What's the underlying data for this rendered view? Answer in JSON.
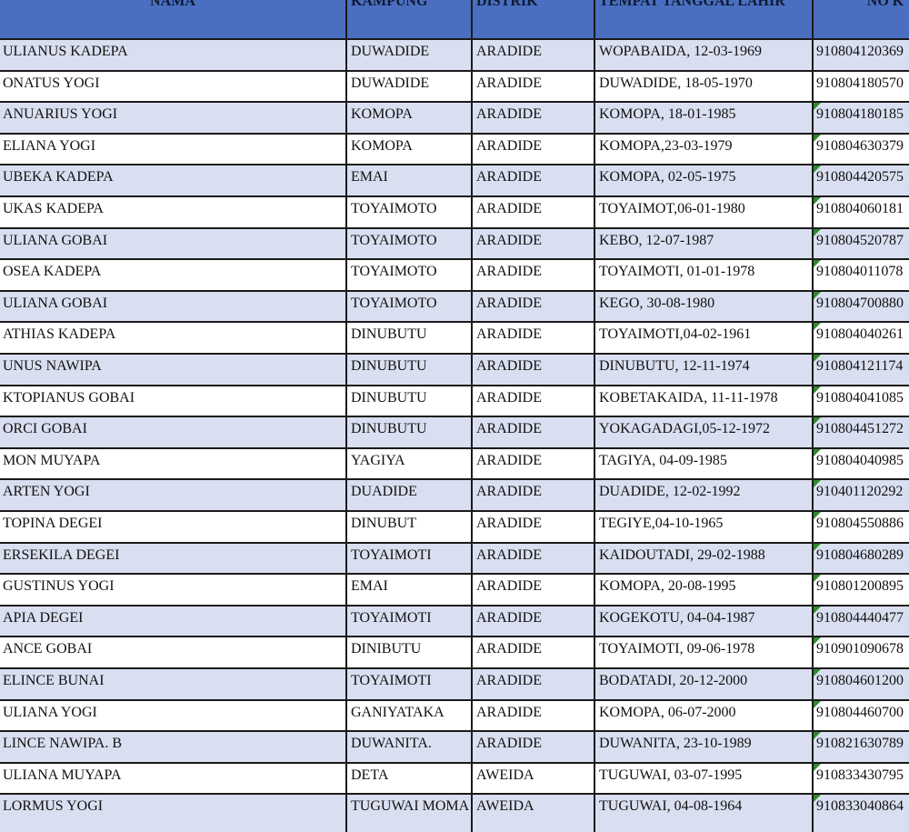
{
  "colors": {
    "header_bg": "#4a6fc0",
    "row_alt_bg": "#d9dff0",
    "marker": "#2e8b2e"
  },
  "headers": [
    "NAMA",
    "KAMPUNG",
    "DISTRIK",
    "TEMPAT TANGGAL LAHIR",
    "NO K"
  ],
  "rows": [
    {
      "nama": "ULIANUS KADEPA",
      "kampung": "DUWADIDE",
      "distrik": "ARADIDE",
      "ttl": "WOPABAIDA, 12-03-1969",
      "no": "910804120369",
      "marker": false
    },
    {
      "nama": "ONATUS YOGI",
      "kampung": "DUWADIDE",
      "distrik": "ARADIDE",
      "ttl": "DUWADIDE, 18-05-1970",
      "no": "910804180570",
      "marker": false
    },
    {
      "nama": "ANUARIUS YOGI",
      "kampung": "KOMOPA",
      "distrik": "ARADIDE",
      "ttl": "KOMOPA, 18-01-1985",
      "no": "910804180185",
      "marker": true
    },
    {
      "nama": "ELIANA YOGI",
      "kampung": "KOMOPA",
      "distrik": "ARADIDE",
      "ttl": "KOMOPA,23-03-1979",
      "no": "910804630379",
      "marker": true
    },
    {
      "nama": "UBEKA KADEPA",
      "kampung": "EMAI",
      "distrik": "ARADIDE",
      "ttl": "KOMOPA, 02-05-1975",
      "no": "910804420575",
      "marker": true
    },
    {
      "nama": "UKAS KADEPA",
      "kampung": "TOYAIMOTO",
      "distrik": "ARADIDE",
      "ttl": "TOYAIMOT,06-01-1980",
      "no": "910804060181",
      "marker": true
    },
    {
      "nama": "ULIANA GOBAI",
      "kampung": "TOYAIMOTO",
      "distrik": "ARADIDE",
      "ttl": "KEBO, 12-07-1987",
      "no": "910804520787",
      "marker": true
    },
    {
      "nama": "OSEA KADEPA",
      "kampung": "TOYAIMOTO",
      "distrik": "ARADIDE",
      "ttl": "TOYAIMOTI, 01-01-1978",
      "no": "910804011078",
      "marker": true
    },
    {
      "nama": "ULIANA GOBAI",
      "kampung": "TOYAIMOTO",
      "distrik": "ARADIDE",
      "ttl": "KEGO, 30-08-1980",
      "no": "910804700880",
      "marker": true
    },
    {
      "nama": "ATHIAS KADEPA",
      "kampung": "DINUBUTU",
      "distrik": "ARADIDE",
      "ttl": "TOYAIMOTI,04-02-1961",
      "no": "910804040261",
      "marker": true
    },
    {
      "nama": "UNUS NAWIPA",
      "kampung": "DINUBUTU",
      "distrik": "ARADIDE",
      "ttl": "DINUBUTU, 12-11-1974",
      "no": "910804121174",
      "marker": true
    },
    {
      "nama": "KTOPIANUS GOBAI",
      "kampung": "DINUBUTU",
      "distrik": "ARADIDE",
      "ttl": "KOBETAKAIDA, 11-11-1978",
      "no": "910804041085",
      "marker": true
    },
    {
      "nama": "ORCI GOBAI",
      "kampung": "DINUBUTU",
      "distrik": "ARADIDE",
      "ttl": "YOKAGADAGI,05-12-1972",
      "no": "910804451272",
      "marker": true
    },
    {
      "nama": "MON MUYAPA",
      "kampung": "YAGIYA",
      "distrik": "ARADIDE",
      "ttl": "TAGIYA, 04-09-1985",
      "no": "910804040985",
      "marker": true
    },
    {
      "nama": "ARTEN YOGI",
      "kampung": "DUADIDE",
      "distrik": "ARADIDE",
      "ttl": "DUADIDE, 12-02-1992",
      "no": "910401120292",
      "marker": true
    },
    {
      "nama": "TOPINA DEGEI",
      "kampung": "DINUBUT",
      "distrik": "ARADIDE",
      "ttl": "TEGIYE,04-10-1965",
      "no": "910804550886",
      "marker": true
    },
    {
      "nama": "ERSEKILA DEGEI",
      "kampung": "TOYAIMOTI",
      "distrik": "ARADIDE",
      "ttl": "KAIDOUTADI, 29-02-1988",
      "no": "910804680289",
      "marker": true
    },
    {
      "nama": "GUSTINUS YOGI",
      "kampung": "EMAI",
      "distrik": "ARADIDE",
      "ttl": "KOMOPA, 20-08-1995",
      "no": "910801200895",
      "marker": true
    },
    {
      "nama": "APIA DEGEI",
      "kampung": "TOYAIMOTI",
      "distrik": "ARADIDE",
      "ttl": "KOGEKOTU, 04-04-1987",
      "no": "910804440477",
      "marker": true
    },
    {
      "nama": "ANCE GOBAI",
      "kampung": "DINIBUTU",
      "distrik": "ARADIDE",
      "ttl": "TOYAIMOTI, 09-06-1978",
      "no": "910901090678",
      "marker": true
    },
    {
      "nama": "ELINCE BUNAI",
      "kampung": "TOYAIMOTI",
      "distrik": "ARADIDE",
      "ttl": "BODATADI, 20-12-2000",
      "no": "910804601200",
      "marker": true
    },
    {
      "nama": "ULIANA YOGI",
      "kampung": "GANIYATAKA",
      "distrik": "ARADIDE",
      "ttl": "KOMOPA, 06-07-2000",
      "no": "910804460700",
      "marker": true
    },
    {
      "nama": "LINCE NAWIPA. B",
      "kampung": "DUWANITA.",
      "distrik": "ARADIDE",
      "ttl": "DUWANITA, 23-10-1989",
      "no": "910821630789",
      "marker": true
    },
    {
      "nama": "ULIANA MUYAPA",
      "kampung": "DETA",
      "distrik": "AWEIDA",
      "ttl": "TUGUWAI, 03-07-1995",
      "no": "910833430795",
      "marker": true
    },
    {
      "nama": "LORMUS YOGI",
      "kampung": "TUGUWAI MOMA",
      "distrik": "AWEIDA",
      "ttl": "TUGUWAI, 04-08-1964",
      "no": "910833040864",
      "marker": true
    }
  ]
}
